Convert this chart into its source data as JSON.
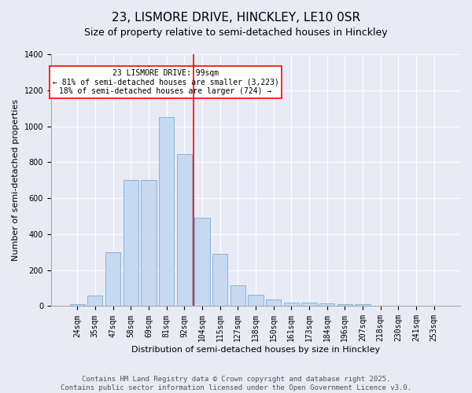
{
  "title": "23, LISMORE DRIVE, HINCKLEY, LE10 0SR",
  "subtitle": "Size of property relative to semi-detached houses in Hinckley",
  "xlabel": "Distribution of semi-detached houses by size in Hinckley",
  "ylabel": "Number of semi-detached properties",
  "footer_line1": "Contains HM Land Registry data © Crown copyright and database right 2025.",
  "footer_line2": "Contains public sector information licensed under the Open Government Licence v3.0.",
  "bar_labels": [
    "24sqm",
    "35sqm",
    "47sqm",
    "58sqm",
    "69sqm",
    "81sqm",
    "92sqm",
    "104sqm",
    "115sqm",
    "127sqm",
    "138sqm",
    "150sqm",
    "161sqm",
    "173sqm",
    "184sqm",
    "196sqm",
    "207sqm",
    "218sqm",
    "230sqm",
    "241sqm",
    "253sqm"
  ],
  "bar_values": [
    10,
    60,
    300,
    700,
    700,
    1050,
    845,
    490,
    290,
    115,
    65,
    38,
    20,
    18,
    13,
    10,
    10,
    0,
    0,
    0,
    0
  ],
  "bar_color": "#c6d9f0",
  "bar_edge_color": "#7bafd4",
  "vline_color": "red",
  "annotation_text": "23 LISMORE DRIVE: 99sqm\n← 81% of semi-detached houses are smaller (3,223)\n18% of semi-detached houses are larger (724) →",
  "annotation_box_color": "white",
  "annotation_box_edge_color": "red",
  "ylim": [
    0,
    1400
  ],
  "background_color": "#e8eaf6",
  "plot_background_color": "#e8eaf6",
  "grid_color": "white",
  "title_fontsize": 11,
  "subtitle_fontsize": 9,
  "axis_label_fontsize": 8,
  "tick_fontsize": 7,
  "annotation_fontsize": 7,
  "footer_fontsize": 6.5
}
